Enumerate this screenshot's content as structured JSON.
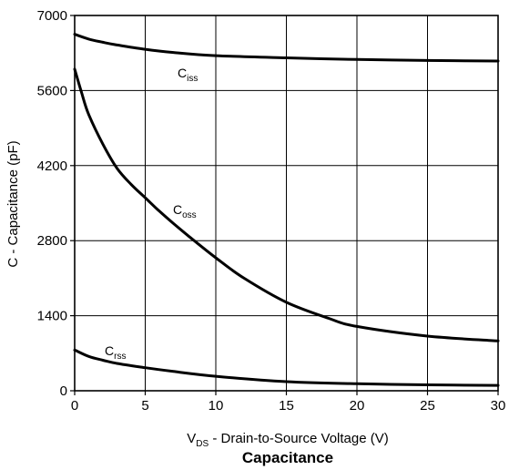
{
  "chart_data": {
    "type": "line",
    "title": "Capacitance",
    "xlabel": {
      "main": "V",
      "sub": "DS",
      "rest": " - Drain-to-Source Voltage (V)"
    },
    "ylabel": "C - Capacitance (pF)",
    "xlim": [
      0,
      30
    ],
    "ylim": [
      0,
      7000
    ],
    "x_ticks": [
      0,
      5,
      10,
      15,
      20,
      25,
      30
    ],
    "y_ticks": [
      0,
      1400,
      2800,
      4200,
      5600,
      7000
    ],
    "grid": true,
    "legend": "none",
    "series": [
      {
        "name": "C_iss",
        "label_main": "C",
        "label_sub": "iss",
        "x": [
          0,
          1,
          2,
          3,
          5,
          7,
          10,
          15,
          20,
          25,
          30
        ],
        "y": [
          6650,
          6560,
          6500,
          6450,
          6370,
          6310,
          6250,
          6210,
          6180,
          6160,
          6150
        ]
      },
      {
        "name": "C_oss",
        "label_main": "C",
        "label_sub": "oss",
        "x": [
          0,
          0.5,
          1,
          2,
          3,
          4,
          5,
          6,
          7,
          8,
          10,
          12,
          15,
          18,
          20,
          25,
          30
        ],
        "y": [
          6000,
          5550,
          5150,
          4600,
          4150,
          3850,
          3600,
          3350,
          3120,
          2900,
          2480,
          2100,
          1650,
          1350,
          1200,
          1020,
          930
        ]
      },
      {
        "name": "C_rss",
        "label_main": "C",
        "label_sub": "rss",
        "x": [
          0,
          1,
          2,
          3,
          5,
          7,
          10,
          15,
          20,
          25,
          30
        ],
        "y": [
          760,
          640,
          570,
          510,
          430,
          360,
          270,
          170,
          130,
          110,
          100
        ]
      }
    ]
  }
}
